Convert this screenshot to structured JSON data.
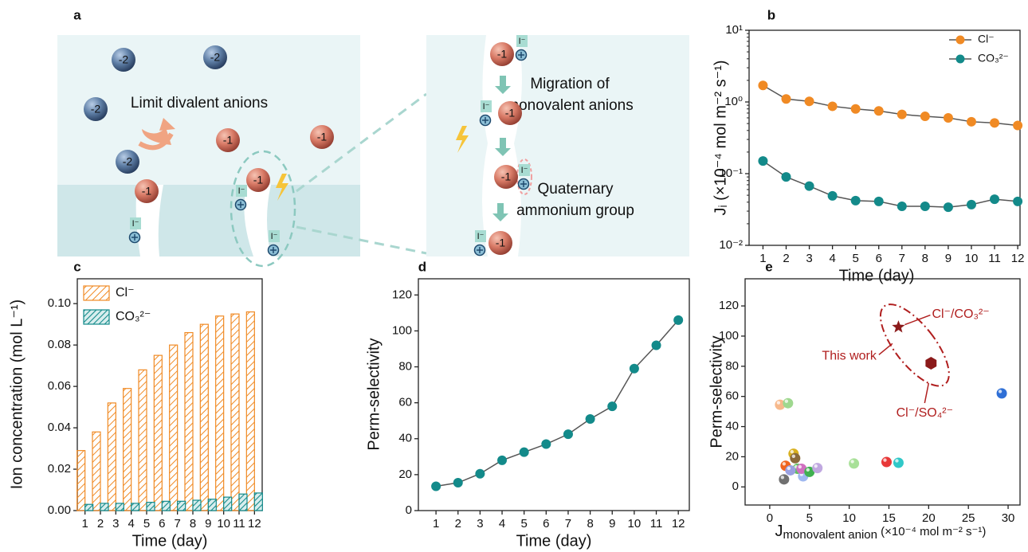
{
  "panel_labels": [
    "a",
    "b",
    "c",
    "d",
    "e"
  ],
  "diagram": {
    "captions": [
      "Limit divalent anions",
      "Migration of",
      "monovalent anions",
      "Quaternary",
      "ammonium group"
    ],
    "divalent_ions": [
      "-2",
      "-2",
      "-2",
      "-2"
    ],
    "monovalent_ions": [
      "-1",
      "-1",
      "-1",
      "-1",
      "-1",
      "-1",
      "-1",
      "-1"
    ],
    "fixed_charges": [
      "I⁻",
      "I⁻",
      "I⁻",
      "I⁻",
      "I⁻",
      "I⁻",
      "I⁻"
    ]
  },
  "chart_data": [
    {
      "type": "line",
      "log_scale": true,
      "x_label": "Time (day)",
      "y_label": "Jᵢ (×10⁻⁴ mol m⁻² s⁻¹)",
      "x": [
        1,
        2,
        3,
        4,
        5,
        6,
        7,
        8,
        9,
        10,
        11,
        12
      ],
      "xlim": [
        0.4,
        12.1
      ],
      "xticks": [
        1,
        2,
        3,
        4,
        5,
        6,
        7,
        8,
        9,
        10,
        11,
        12
      ],
      "ylim": [
        0.01,
        10
      ],
      "yticks": [
        {
          "value": 0.01,
          "label": "10⁻²"
        },
        {
          "value": 0.1,
          "label": "10⁻¹"
        },
        {
          "value": 1,
          "label": "10⁰"
        },
        {
          "value": 10,
          "label": "10¹"
        }
      ],
      "legend": "upper right",
      "series": [
        {
          "name": "Cl⁻",
          "color": "#f08a24",
          "values": [
            1.7,
            1.1,
            1.02,
            0.87,
            0.8,
            0.75,
            0.67,
            0.63,
            0.6,
            0.53,
            0.51,
            0.47
          ]
        },
        {
          "name": "CO₃²⁻",
          "color": "#138a8a",
          "values": [
            0.15,
            0.09,
            0.067,
            0.049,
            0.042,
            0.041,
            0.035,
            0.035,
            0.034,
            0.037,
            0.044,
            0.041
          ]
        }
      ]
    },
    {
      "type": "bar",
      "hatch": true,
      "x_label": "Time (day)",
      "y_label": "Ion concentration (mol L⁻¹)",
      "categories": [
        "1",
        "2",
        "3",
        "4",
        "5",
        "6",
        "7",
        "8",
        "9",
        "10",
        "11",
        "12"
      ],
      "ylim": [
        0,
        0.112
      ],
      "yticks": [
        {
          "value": 0,
          "label": "0.00"
        },
        {
          "value": 0.02,
          "label": "0.02"
        },
        {
          "value": 0.04,
          "label": "0.04"
        },
        {
          "value": 0.06,
          "label": "0.06"
        },
        {
          "value": 0.08,
          "label": "0.08"
        },
        {
          "value": 0.1,
          "label": "0.10"
        }
      ],
      "legend": "upper left",
      "series": [
        {
          "name": "Cl⁻",
          "color": "#f08a24",
          "values": [
            0.029,
            0.038,
            0.052,
            0.059,
            0.068,
            0.075,
            0.08,
            0.086,
            0.09,
            0.094,
            0.095,
            0.096
          ]
        },
        {
          "name": "CO₃²⁻",
          "color": "#138a8a",
          "values": [
            0.003,
            0.0035,
            0.0035,
            0.0035,
            0.004,
            0.0045,
            0.0045,
            0.005,
            0.0055,
            0.0065,
            0.008,
            0.0085
          ]
        }
      ]
    },
    {
      "type": "line",
      "x_label": "Time (day)",
      "y_label": "Perm-selectivity",
      "x": [
        1,
        2,
        3,
        4,
        5,
        6,
        7,
        8,
        9,
        10,
        11,
        12
      ],
      "xlim": [
        0.2,
        12.5
      ],
      "xticks": [
        1,
        2,
        3,
        4,
        5,
        6,
        7,
        8,
        9,
        10,
        11,
        12
      ],
      "ylim": [
        0,
        129
      ],
      "yticks": [
        0,
        20,
        40,
        60,
        80,
        100,
        120
      ],
      "series": [
        {
          "color": "#138a8a",
          "values": [
            13.5,
            15.5,
            20.5,
            28,
            32.5,
            37,
            42.5,
            51,
            58,
            79,
            92,
            106
          ]
        }
      ]
    },
    {
      "type": "scatter",
      "y_label": "Perm-selectivity",
      "x_label_symbol": "J",
      "x_label_sub": "monovalent anion",
      "x_label_unit": " (×10⁻⁴ mol m⁻² s⁻¹)",
      "xlim": [
        -3.1,
        31.5
      ],
      "xticks": [
        0,
        5,
        10,
        15,
        20,
        25,
        30
      ],
      "ylim": [
        -12,
        138
      ],
      "yticks": [
        0,
        20,
        40,
        60,
        80,
        100,
        120
      ],
      "x": [
        1.3,
        2.3,
        29.2,
        2.0,
        3.0,
        3.2,
        3.5,
        2.6,
        4.2,
        4.0,
        5.0,
        6.0,
        1.8,
        10.6,
        14.7,
        16.2
      ],
      "values": [
        54.5,
        55.5,
        62,
        14,
        22,
        19,
        12,
        11,
        7,
        12,
        10,
        12.5,
        5,
        15.5,
        16.5,
        16
      ],
      "colors": [
        "#f7b98c",
        "#9fd88f",
        "#2f6fd6",
        "#f0641e",
        "#d8b020",
        "#8a6a3a",
        "#5fc060",
        "#9aa0e0",
        "#9fb8f0",
        "#d070c0",
        "#40b050",
        "#c0a8e0",
        "#707070",
        "#a8e098",
        "#e83838",
        "#30c8c8"
      ],
      "this_work": {
        "color": "#8b1a1a",
        "x": [
          16.2,
          20.3
        ],
        "values": [
          106,
          82
        ]
      },
      "annotations": [
        "Cl⁻/CO₃²⁻",
        "This work",
        "Cl⁻/SO₄²⁻"
      ]
    }
  ]
}
